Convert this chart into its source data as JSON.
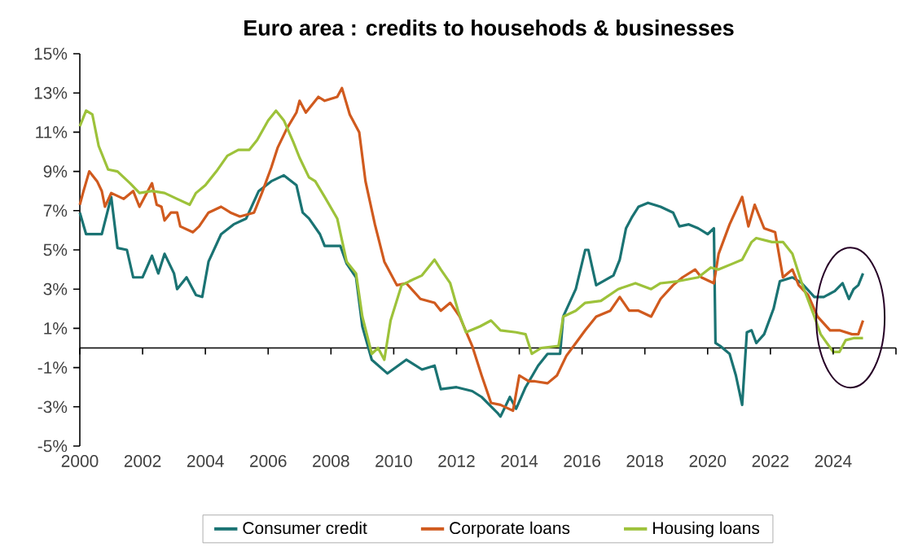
{
  "chart_data": {
    "type": "line",
    "title": "Euro area : credits to househods & businesses",
    "xlim": [
      2000,
      2026
    ],
    "xticks": [
      2000,
      2002,
      2004,
      2006,
      2008,
      2010,
      2012,
      2014,
      2016,
      2018,
      2020,
      2022,
      2024,
      {
        "value": 2026,
        "label": null
      }
    ],
    "ylim": [
      -5,
      15
    ],
    "yticks": [
      {
        "value": -5,
        "label": "-5%"
      },
      {
        "value": -3,
        "label": "-3%"
      },
      {
        "value": -1,
        "label": "-1%"
      },
      {
        "value": 1,
        "label": "1%"
      },
      {
        "value": 3,
        "label": "3%"
      },
      {
        "value": 5,
        "label": "5%"
      },
      {
        "value": 7,
        "label": "7%"
      },
      {
        "value": 9,
        "label": "9%"
      },
      {
        "value": 11,
        "label": "11%"
      },
      {
        "value": 13,
        "label": "13%"
      },
      {
        "value": 15,
        "label": "15%"
      }
    ],
    "grid": false,
    "legend": "bottom",
    "marker": "none",
    "line_style": "solid",
    "ref_lines": [
      {
        "axis": "y",
        "value": 0,
        "color": "#000000"
      }
    ],
    "series": [
      {
        "name": "Consumer credit",
        "color": "#1a7373",
        "x": [
          2000,
          2000.2,
          2000.7,
          2001,
          2001.2,
          2001.5,
          2001.7,
          2002.0,
          2002.3,
          2002.5,
          2002.7,
          2003.0,
          2003.1,
          2003.4,
          2003.7,
          2003.9,
          2004.1,
          2004.5,
          2004.9,
          2005.3,
          2005.7,
          2006.1,
          2006.5,
          2006.9,
          2007.1,
          2007.3,
          2007.65,
          2007.8,
          2008.3,
          2008.5,
          2008.8,
          2009.0,
          2009.3,
          2009.8,
          2010.4,
          2010.9,
          2011.3,
          2011.5,
          2012.0,
          2012.5,
          2012.8,
          2013.3,
          2013.4,
          2013.7,
          2013.9,
          2014.2,
          2014.6,
          2014.9,
          2015.3,
          2015.4,
          2015.8,
          2016.1,
          2016.2,
          2016.45,
          2017.0,
          2017.2,
          2017.4,
          2017.6,
          2017.8,
          2018.1,
          2018.5,
          2018.9,
          2019.1,
          2019.4,
          2019.7,
          2020.0,
          2020.2,
          2020.25,
          2020.4,
          2020.7,
          2020.9,
          2021.1,
          2021.25,
          2021.4,
          2021.55,
          2021.8,
          2022.1,
          2022.3,
          2022.7,
          2023.0,
          2023.4,
          2023.7,
          2024.05,
          2024.3,
          2024.5,
          2024.65,
          2024.8,
          2024.95
        ],
        "values": [
          6.9,
          5.8,
          5.8,
          7.7,
          5.1,
          5.0,
          3.6,
          3.6,
          4.7,
          3.8,
          4.8,
          3.8,
          3.0,
          3.6,
          2.7,
          2.6,
          4.4,
          5.8,
          6.3,
          6.6,
          8.0,
          8.5,
          8.8,
          8.3,
          6.9,
          6.6,
          5.8,
          5.2,
          5.2,
          4.3,
          3.6,
          1.1,
          -0.6,
          -1.3,
          -0.6,
          -1.1,
          -0.9,
          -2.1,
          -2.0,
          -2.2,
          -2.5,
          -3.3,
          -3.5,
          -2.5,
          -3.1,
          -2.0,
          -0.9,
          -0.3,
          -0.3,
          1.6,
          3.0,
          5.0,
          5.0,
          3.2,
          3.7,
          4.5,
          6.1,
          6.7,
          7.2,
          7.4,
          7.2,
          6.9,
          6.2,
          6.3,
          6.1,
          5.8,
          6.1,
          0.25,
          0.1,
          -0.3,
          -1.4,
          -2.9,
          0.8,
          0.9,
          0.25,
          0.7,
          2.0,
          3.4,
          3.6,
          3.3,
          2.6,
          2.6,
          2.9,
          3.3,
          2.5,
          3.0,
          3.2,
          3.8
        ]
      },
      {
        "name": "Corporate loans",
        "color": "#d05a1e",
        "x": [
          2000,
          2000.1,
          2000.3,
          2000.55,
          2000.7,
          2000.8,
          2001.0,
          2001.4,
          2001.7,
          2001.9,
          2002.3,
          2002.45,
          2002.6,
          2002.7,
          2002.9,
          2003.1,
          2003.2,
          2003.6,
          2003.8,
          2004.1,
          2004.5,
          2004.8,
          2005.1,
          2005.55,
          2005.8,
          2006.1,
          2006.3,
          2006.6,
          2006.9,
          2007.0,
          2007.2,
          2007.6,
          2007.8,
          2008.2,
          2008.35,
          2008.6,
          2008.9,
          2009.1,
          2009.4,
          2009.7,
          2010.1,
          2010.4,
          2010.85,
          2011.3,
          2011.5,
          2011.8,
          2012.1,
          2012.5,
          2012.8,
          2013.1,
          2013.4,
          2013.8,
          2014.0,
          2014.3,
          2014.5,
          2014.9,
          2015.2,
          2015.5,
          2015.8,
          2016.1,
          2016.45,
          2016.9,
          2017.2,
          2017.5,
          2017.8,
          2018.2,
          2018.5,
          2018.9,
          2019.2,
          2019.6,
          2019.8,
          2020.2,
          2020.35,
          2020.7,
          2021.1,
          2021.3,
          2021.5,
          2021.8,
          2022.15,
          2022.4,
          2022.7,
          2022.9,
          2023.2,
          2023.5,
          2023.9,
          2024.2,
          2024.6,
          2024.8,
          2024.95
        ],
        "values": [
          7.3,
          7.9,
          9.0,
          8.5,
          8.0,
          7.2,
          7.9,
          7.6,
          8.0,
          7.2,
          8.4,
          7.3,
          7.2,
          6.5,
          6.9,
          6.9,
          6.2,
          5.9,
          6.2,
          6.9,
          7.2,
          6.9,
          6.7,
          6.9,
          7.9,
          9.2,
          10.2,
          11.2,
          12.0,
          12.6,
          12.0,
          12.8,
          12.6,
          12.8,
          13.25,
          11.9,
          11.0,
          8.5,
          6.3,
          4.4,
          3.2,
          3.3,
          2.5,
          2.3,
          1.9,
          2.3,
          1.6,
          0.1,
          -1.4,
          -2.8,
          -2.9,
          -3.2,
          -1.4,
          -1.7,
          -1.7,
          -1.8,
          -1.4,
          -0.4,
          0.25,
          0.9,
          1.6,
          1.9,
          2.6,
          1.9,
          1.9,
          1.6,
          2.5,
          3.2,
          3.6,
          4.0,
          3.6,
          3.3,
          4.8,
          6.3,
          7.7,
          6.2,
          7.3,
          6.1,
          5.9,
          3.6,
          4.0,
          3.2,
          2.7,
          1.6,
          0.9,
          0.9,
          0.7,
          0.7,
          1.4
        ]
      },
      {
        "name": "Housing loans",
        "color": "#9dc23a",
        "x": [
          2000,
          2000.2,
          2000.4,
          2000.6,
          2000.9,
          2001.2,
          2001.6,
          2001.9,
          2002.3,
          2002.7,
          2003.1,
          2003.5,
          2003.7,
          2004.0,
          2004.35,
          2004.7,
          2005.05,
          2005.4,
          2005.65,
          2006.0,
          2006.25,
          2006.5,
          2006.8,
          2007.0,
          2007.3,
          2007.5,
          2007.8,
          2008.2,
          2008.5,
          2008.8,
          2009.0,
          2009.3,
          2009.5,
          2009.7,
          2009.9,
          2010.25,
          2010.5,
          2010.9,
          2011.3,
          2011.5,
          2011.8,
          2012.05,
          2012.3,
          2012.75,
          2013.1,
          2013.4,
          2013.9,
          2014.2,
          2014.4,
          2014.7,
          2015.25,
          2015.4,
          2015.8,
          2016.1,
          2016.6,
          2017.15,
          2017.7,
          2018.2,
          2018.5,
          2019.05,
          2019.7,
          2020.1,
          2020.35,
          2020.8,
          2021.1,
          2021.4,
          2021.55,
          2022.05,
          2022.4,
          2022.7,
          2023.0,
          2023.4,
          2023.6,
          2024.0,
          2024.2,
          2024.4,
          2024.65,
          2024.95
        ],
        "values": [
          11.3,
          12.1,
          11.9,
          10.3,
          9.1,
          9.0,
          8.4,
          7.9,
          8.0,
          7.9,
          7.6,
          7.3,
          7.9,
          8.3,
          9.0,
          9.8,
          10.1,
          10.1,
          10.6,
          11.6,
          12.1,
          11.6,
          10.5,
          9.7,
          8.7,
          8.5,
          7.7,
          6.6,
          4.4,
          3.8,
          1.6,
          -0.3,
          0.0,
          -0.6,
          1.4,
          3.2,
          3.4,
          3.7,
          4.5,
          4.0,
          3.3,
          1.9,
          0.8,
          1.1,
          1.4,
          0.9,
          0.8,
          0.7,
          -0.3,
          0.0,
          0.1,
          1.6,
          1.9,
          2.3,
          2.4,
          3.0,
          3.3,
          3.0,
          3.3,
          3.4,
          3.6,
          4.1,
          4.0,
          4.3,
          4.5,
          5.4,
          5.6,
          5.4,
          5.4,
          4.8,
          3.3,
          1.6,
          0.7,
          -0.2,
          -0.2,
          0.4,
          0.5,
          0.5
        ]
      }
    ]
  }
}
